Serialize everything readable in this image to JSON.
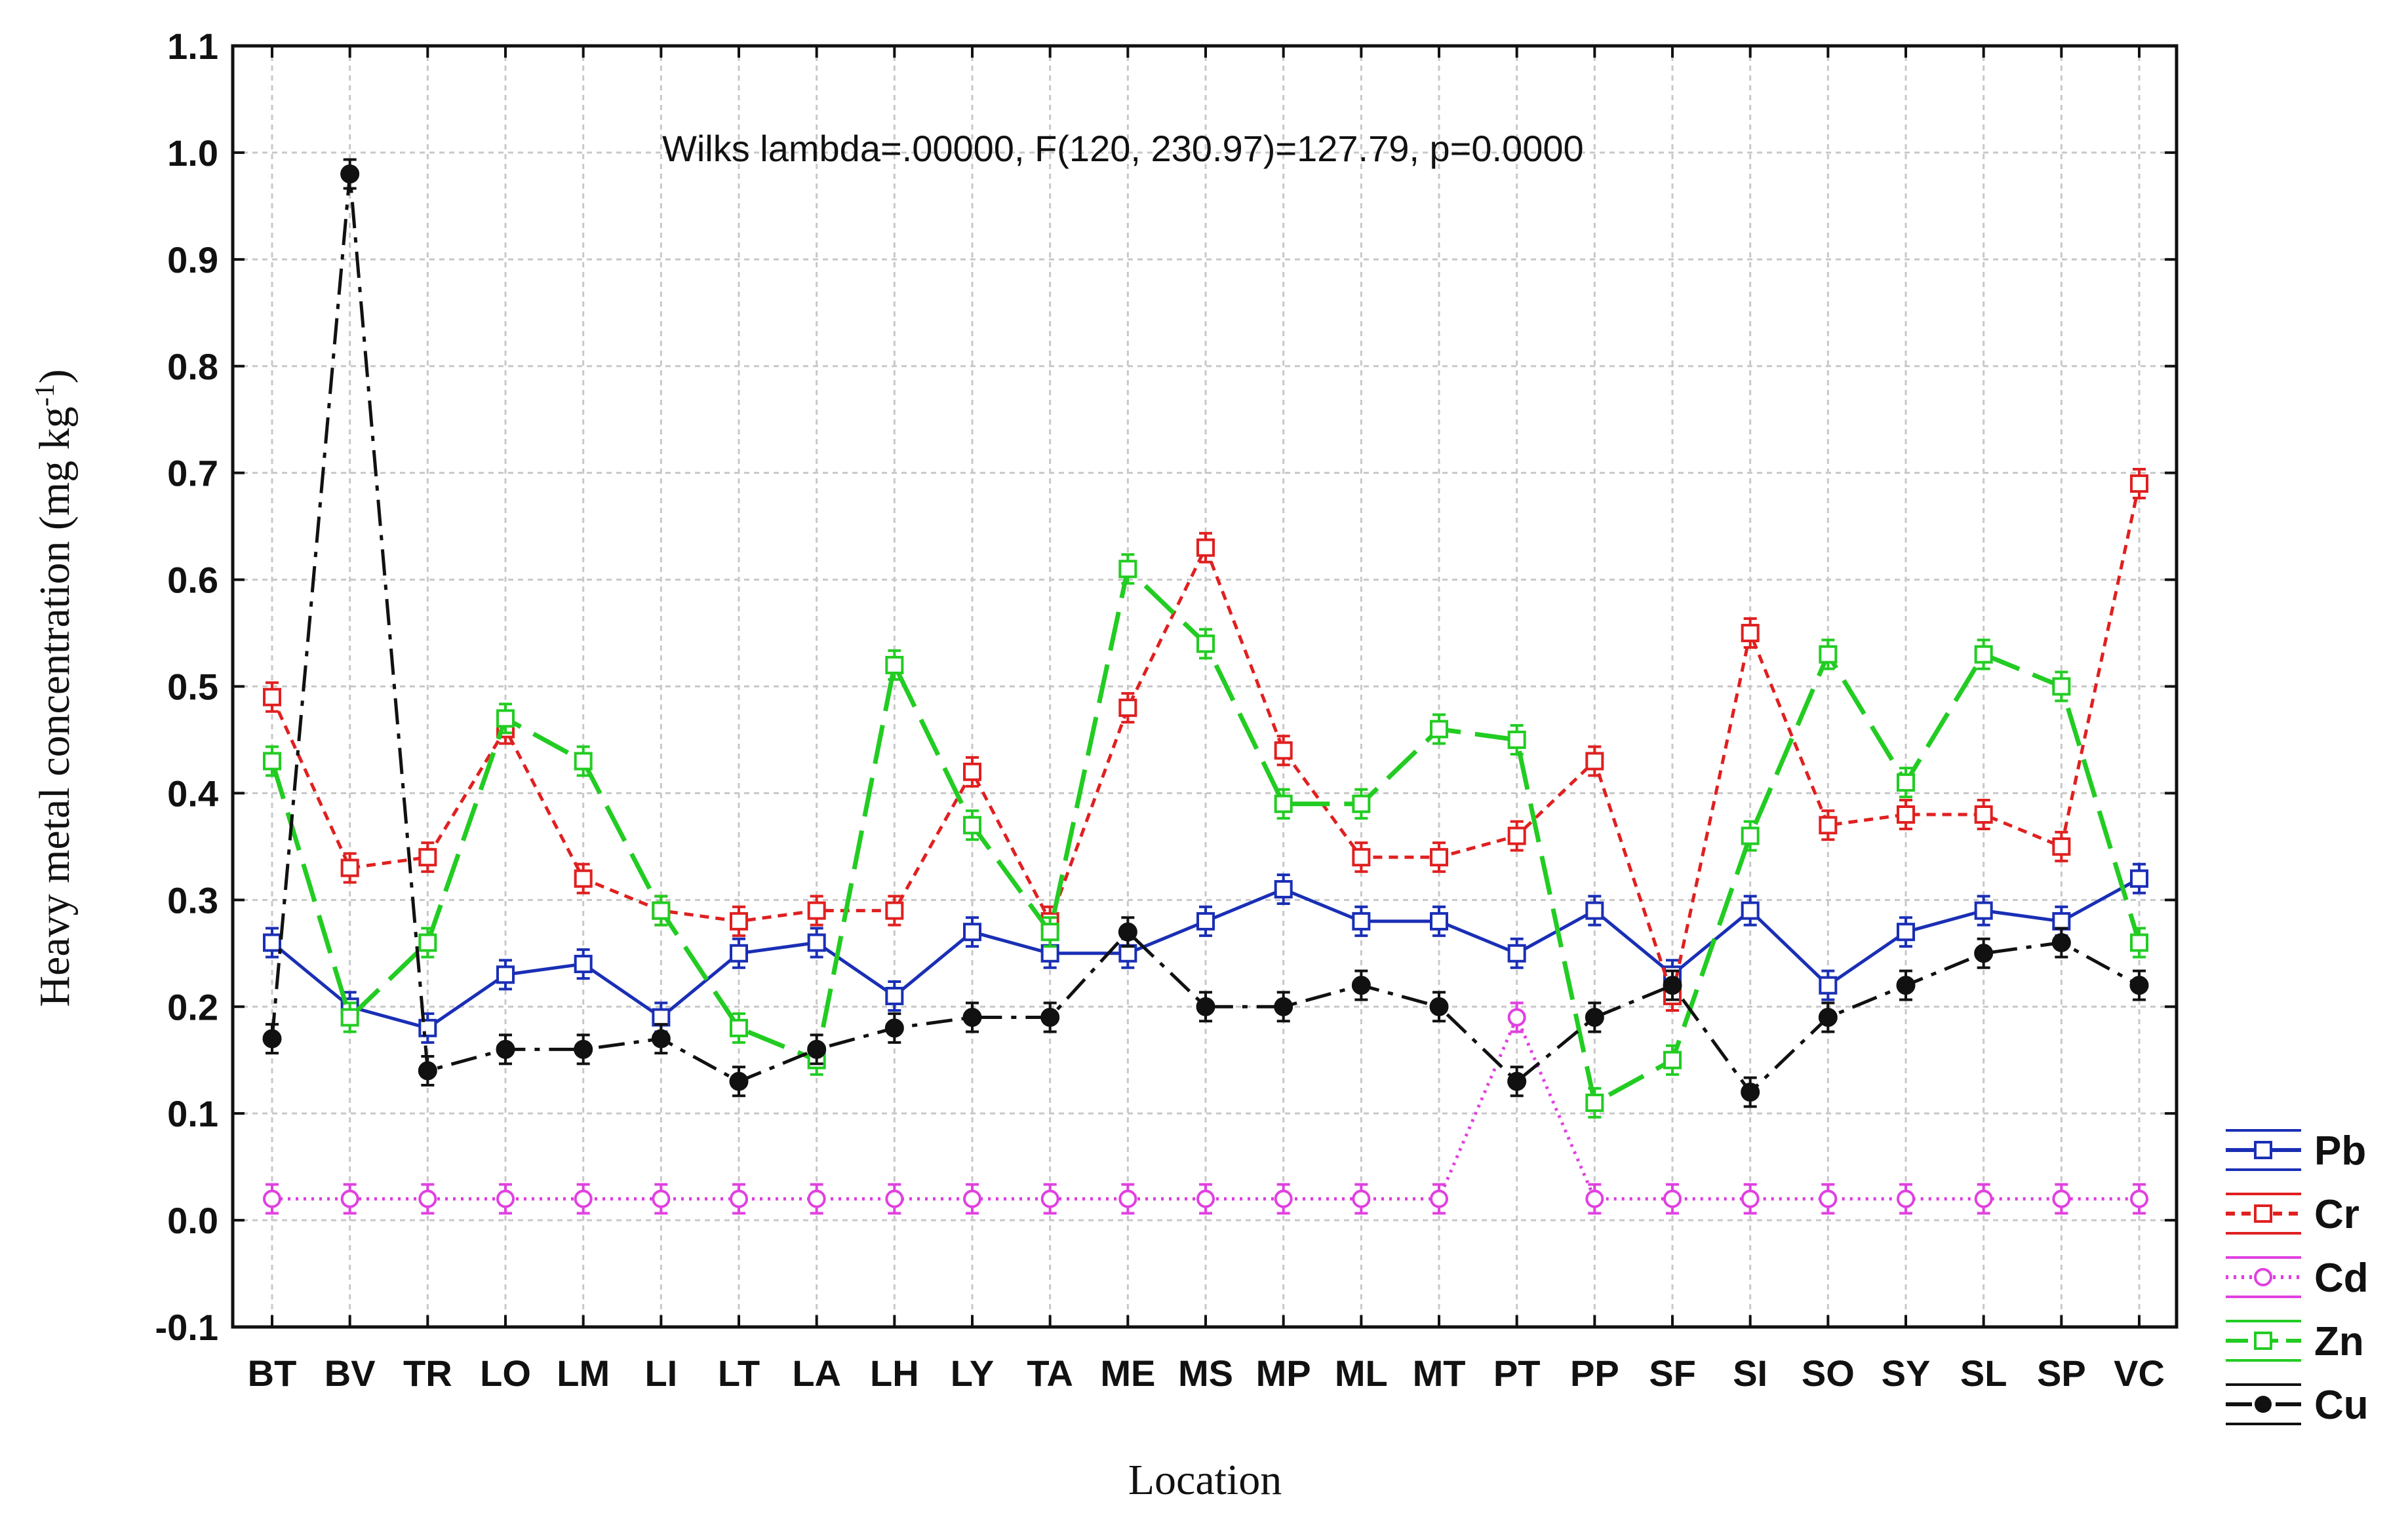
{
  "chart_data": {
    "type": "line",
    "title": "",
    "annotation": "Wilks lambda=.00000, F(120, 230.97)=127.79, p=0.0000",
    "xlabel": "Location",
    "ylabel": "Heavy metal concentration (mg kg",
    "ylabel_sup": "-1",
    "ylabel_close": ")",
    "ylim": [
      -0.1,
      1.1
    ],
    "grid": true,
    "legend_position": "bottom-right",
    "yticks": [
      "-0.1",
      "0.0",
      "0.1",
      "0.2",
      "0.3",
      "0.4",
      "0.5",
      "0.6",
      "0.7",
      "0.8",
      "0.9",
      "1.0",
      "1.1"
    ],
    "categories": [
      "BT",
      "BV",
      "TR",
      "LO",
      "LM",
      "LI",
      "LT",
      "LA",
      "LH",
      "LY",
      "TA",
      "ME",
      "MS",
      "MP",
      "ML",
      "MT",
      "PT",
      "PP",
      "SF",
      "SI",
      "SO",
      "SY",
      "SL",
      "SP",
      "VC"
    ],
    "series": [
      {
        "name": "Pb",
        "color": "#1a2fb5",
        "values": [
          0.26,
          0.2,
          0.18,
          0.23,
          0.24,
          0.19,
          0.25,
          0.26,
          0.21,
          0.27,
          0.25,
          0.25,
          0.28,
          0.31,
          0.28,
          0.28,
          0.25,
          0.29,
          0.23,
          0.29,
          0.22,
          0.27,
          0.29,
          0.28,
          0.32
        ]
      },
      {
        "name": "Cr",
        "color": "#e02020",
        "values": [
          0.49,
          0.33,
          0.34,
          0.46,
          0.32,
          0.29,
          0.28,
          0.29,
          0.29,
          0.42,
          0.28,
          0.48,
          0.63,
          0.44,
          0.34,
          0.34,
          0.36,
          0.43,
          0.21,
          0.55,
          0.37,
          0.38,
          0.38,
          0.35,
          0.69
        ]
      },
      {
        "name": "Cd",
        "color": "#e040e0",
        "values": [
          0.02,
          0.02,
          0.02,
          0.02,
          0.02,
          0.02,
          0.02,
          0.02,
          0.02,
          0.02,
          0.02,
          0.02,
          0.02,
          0.02,
          0.02,
          0.02,
          0.19,
          0.02,
          0.02,
          0.02,
          0.02,
          0.02,
          0.02,
          0.02,
          0.02
        ]
      },
      {
        "name": "Zn",
        "color": "#22cc22",
        "values": [
          0.43,
          0.19,
          0.26,
          0.47,
          0.43,
          0.29,
          0.18,
          0.15,
          0.52,
          0.37,
          0.27,
          0.61,
          0.54,
          0.39,
          0.39,
          0.46,
          0.45,
          0.11,
          0.15,
          0.36,
          0.53,
          0.41,
          0.53,
          0.5,
          0.26
        ]
      },
      {
        "name": "Cu",
        "color": "#111111",
        "values": [
          0.17,
          0.98,
          0.14,
          0.16,
          0.16,
          0.17,
          0.13,
          0.16,
          0.18,
          0.19,
          0.19,
          0.27,
          0.2,
          0.2,
          0.22,
          0.2,
          0.13,
          0.19,
          0.22,
          0.12,
          0.19,
          0.22,
          0.25,
          0.26,
          0.22
        ]
      }
    ]
  }
}
